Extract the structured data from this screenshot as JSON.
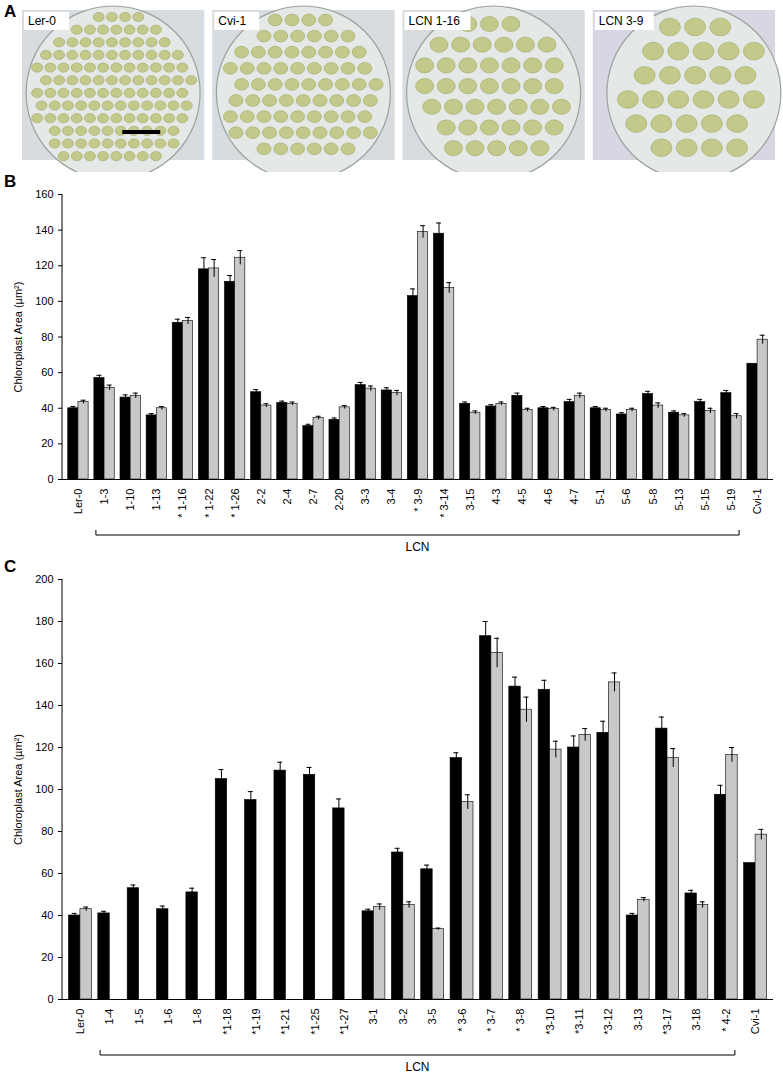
{
  "chart_data": [
    {
      "type": "image",
      "title": "A",
      "labels": [
        "Ler-0",
        "Cvi-1",
        "LCN 1-16",
        "LCN 3-9"
      ]
    },
    {
      "type": "bar",
      "title": "B",
      "y_label": "Chloroplast Area (µm²)",
      "categories": [
        "Ler-0",
        "1-3",
        "1-10",
        "1-13",
        "* 1-16",
        "* 1-22",
        "* 1-26",
        "2-2",
        "2-4",
        "2-7",
        "2-20",
        "3-3",
        "3-4",
        "* 3-9",
        "* 3-14",
        "3-15",
        "4-3",
        "4-5",
        "4-6",
        "4-7",
        "5-1",
        "5-6",
        "5-8",
        "5-13",
        "5-15",
        "5-19",
        "Cvi-1"
      ],
      "series": [
        {
          "color": "#000000",
          "values": [
            40,
            57,
            46,
            36,
            88,
            118,
            111,
            49,
            43,
            30,
            33.5,
            53,
            50,
            103,
            138,
            42.5,
            41,
            47,
            40,
            43.5,
            40,
            36.5,
            48,
            37.5,
            43.5,
            48.5,
            65
          ],
          "errors": [
            1,
            1.5,
            1.5,
            1,
            2,
            6.5,
            3.5,
            1.5,
            1,
            1,
            1,
            1.5,
            1.5,
            4,
            6,
            1,
            1,
            1.5,
            1,
            1.5,
            1,
            1,
            1.5,
            1,
            1.5,
            1.5,
            null
          ]
        },
        {
          "color": "#c8c8c8",
          "values": [
            43.5,
            51.5,
            47,
            40,
            89,
            118.5,
            124.5,
            41.5,
            42.5,
            34.5,
            40.5,
            51,
            48.5,
            139,
            107.5,
            37.5,
            42.5,
            39,
            39.5,
            47,
            39,
            39,
            41.5,
            36,
            38.5,
            35.5,
            78.5
          ],
          "errors": [
            1,
            1.5,
            1.5,
            1,
            2,
            5,
            4,
            1,
            1,
            1,
            1,
            1.5,
            1.5,
            3.5,
            3,
            1,
            1,
            1,
            1,
            1.5,
            1,
            1,
            1.5,
            1,
            1.5,
            1.5,
            2.5
          ]
        }
      ],
      "ylim": [
        0,
        160
      ],
      "yticks": [
        0,
        20,
        40,
        60,
        80,
        100,
        120,
        140,
        160
      ],
      "grid": false,
      "annotations": [
        {
          "text": "LCN",
          "from": "1-3",
          "to": "5-19"
        }
      ]
    },
    {
      "type": "bar",
      "title": "C",
      "y_label": "Chloroplast Area (µm²)",
      "categories": [
        "Ler-0",
        "1-4",
        "1-5",
        "1-6",
        "1-8",
        "*1-18",
        "*1-19",
        "*1-21",
        "*1-25",
        "*1-27",
        "3-1",
        "3-2",
        "3-5",
        "* 3-6",
        "* 3-7",
        "* 3-8",
        "*3-10",
        "*3-11",
        "*3-12",
        "3-13",
        "*3-17",
        "3-18",
        "* 4-2",
        "Cvi-1"
      ],
      "series": [
        {
          "color": "#000000",
          "values": [
            40,
            41,
            53,
            43,
            51,
            105,
            95,
            109,
            107,
            91,
            42,
            70,
            62,
            115,
            173,
            149,
            147.5,
            120,
            127,
            40,
            129,
            50.5,
            97.5,
            65
          ],
          "errors": [
            1,
            1,
            1.5,
            1.5,
            2,
            4.5,
            4,
            4,
            3.5,
            4.5,
            1,
            2,
            2,
            2.5,
            7,
            4.5,
            4.5,
            5.5,
            5.5,
            1,
            5.5,
            1.5,
            4.5,
            null
          ]
        },
        {
          "color": "#c8c8c8",
          "values": [
            43,
            null,
            null,
            null,
            null,
            null,
            null,
            null,
            null,
            null,
            44,
            45,
            33.5,
            94,
            165,
            138,
            119,
            126,
            151,
            47.5,
            115,
            45,
            116.5,
            78.5
          ],
          "errors": [
            1,
            null,
            null,
            null,
            null,
            null,
            null,
            null,
            null,
            null,
            1.5,
            1.5,
            0.5,
            3.5,
            7,
            6,
            4,
            3,
            4.5,
            1,
            4.5,
            1.5,
            3.5,
            2.5
          ]
        }
      ],
      "ylim": [
        0,
        200
      ],
      "yticks": [
        0,
        20,
        40,
        60,
        80,
        100,
        120,
        140,
        160,
        180,
        200
      ],
      "grid": false,
      "annotations": [
        {
          "text": "LCN",
          "from": "1-4",
          "to": "* 4-2"
        }
      ]
    }
  ]
}
